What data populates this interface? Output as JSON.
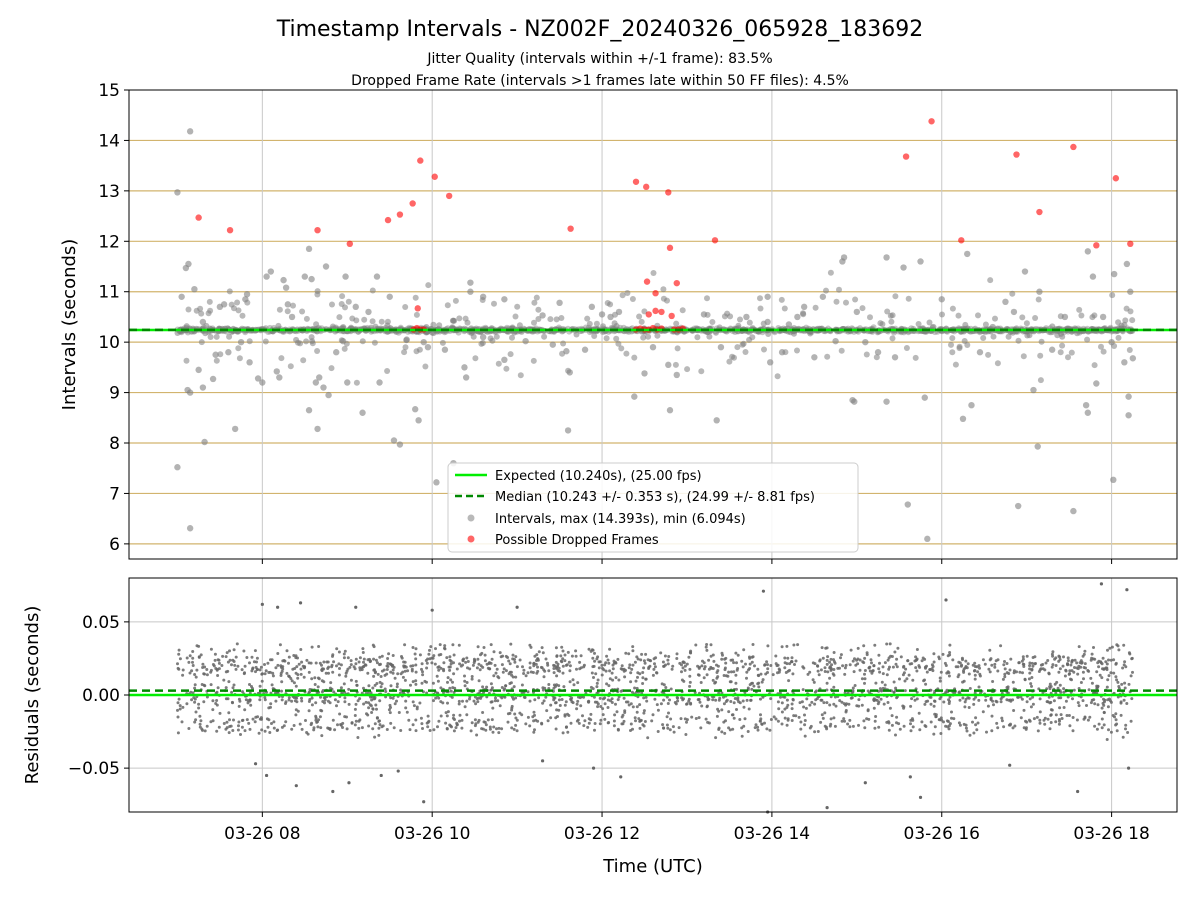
{
  "title": "Timestamp Intervals - NZ002F_20240326_065928_183692",
  "subtitle_1": "Jitter Quality (intervals within +/-1 frame): 83.5%",
  "subtitle_2": "Dropped Frame Rate (intervals >1 frames late within 50 FF files): 4.5%",
  "colors": {
    "expected": "#00ee00",
    "median": "#008800",
    "intervals": "#808080",
    "dropped": "#ff0000",
    "hgrid_top": "#d2b46e",
    "grid": "#c8c8c8",
    "residuals": "#666666"
  },
  "chart_data": [
    {
      "type": "scatter",
      "ylabel": "Intervals (seconds)",
      "ylim": [
        5.7,
        15
      ],
      "yticks": [
        6,
        7,
        8,
        9,
        10,
        11,
        12,
        13,
        14,
        15
      ],
      "xlim": [
        6.43,
        18.77
      ],
      "x_unit": "hour of 2024-03-26 UTC",
      "expected": 10.24,
      "median": 10.243,
      "legend": {
        "placement": "lower center",
        "entries": [
          "Expected (10.240s), (25.00 fps)",
          "Median (10.243 +/- 0.353 s), (24.99 +/- 8.81 fps)",
          "Intervals, max (14.393s), min (6.094s)",
          "Possible Dropped Frames"
        ]
      },
      "grid": "on",
      "series": [
        {
          "name": "Intervals, max (14.393s), min (6.094s)",
          "points": [
            [
              7.0,
              12.97
            ],
            [
              7.15,
              14.18
            ],
            [
              7.0,
              7.52
            ],
            [
              7.15,
              6.31
            ],
            [
              7.1,
              11.47
            ],
            [
              7.13,
              11.55
            ],
            [
              7.2,
              11.05
            ],
            [
              7.05,
              10.9
            ],
            [
              7.12,
              9.05
            ],
            [
              7.15,
              9.0
            ],
            [
              7.25,
              9.45
            ],
            [
              7.3,
              9.1
            ],
            [
              7.32,
              8.02
            ],
            [
              7.42,
              9.27
            ],
            [
              7.45,
              9.75
            ],
            [
              7.5,
              10.7
            ],
            [
              7.55,
              10.75
            ],
            [
              7.68,
              8.28
            ],
            [
              7.8,
              10.85
            ],
            [
              7.82,
              10.95
            ],
            [
              7.85,
              9.6
            ],
            [
              7.95,
              9.28
            ],
            [
              8.05,
              11.3
            ],
            [
              8.1,
              11.4
            ],
            [
              8.0,
              9.2
            ],
            [
              8.17,
              9.42
            ],
            [
              8.28,
              11.08
            ],
            [
              8.25,
              11.23
            ],
            [
              8.2,
              9.3
            ],
            [
              8.3,
              10.75
            ],
            [
              8.5,
              11.3
            ],
            [
              8.55,
              11.85
            ],
            [
              8.58,
              11.25
            ],
            [
              8.63,
              9.2
            ],
            [
              8.55,
              8.65
            ],
            [
              8.65,
              8.28
            ],
            [
              8.67,
              9.3
            ],
            [
              8.72,
              9.1
            ],
            [
              8.75,
              11.5
            ],
            [
              8.78,
              8.95
            ],
            [
              8.87,
              9.8
            ],
            [
              8.98,
              11.3
            ],
            [
              9.0,
              9.2
            ],
            [
              9.1,
              10.7
            ],
            [
              9.18,
              8.6
            ],
            [
              9.35,
              11.3
            ],
            [
              9.38,
              9.2
            ],
            [
              9.5,
              10.9
            ],
            [
              9.55,
              8.05
            ],
            [
              9.62,
              7.97
            ],
            [
              9.8,
              8.67
            ],
            [
              9.84,
              8.45
            ],
            [
              9.9,
              10.0
            ],
            [
              9.95,
              9.9
            ],
            [
              10.05,
              7.22
            ],
            [
              10.25,
              7.6
            ],
            [
              10.38,
              9.5
            ],
            [
              10.4,
              9.3
            ],
            [
              10.45,
              11.0
            ],
            [
              10.45,
              11.18
            ],
            [
              10.6,
              10.9
            ],
            [
              10.85,
              10.85
            ],
            [
              10.85,
              9.65
            ],
            [
              11.3,
              10.53
            ],
            [
              11.42,
              9.95
            ],
            [
              11.5,
              10.78
            ],
            [
              11.58,
              9.82
            ],
            [
              11.62,
              9.4
            ],
            [
              11.6,
              8.25
            ],
            [
              11.88,
              10.7
            ],
            [
              12.0,
              10.55
            ],
            [
              12.1,
              10.5
            ],
            [
              12.38,
              8.92
            ],
            [
              12.5,
              9.38
            ],
            [
              12.78,
              9.55
            ],
            [
              12.8,
              8.65
            ],
            [
              12.88,
              9.35
            ],
            [
              13.2,
              10.55
            ],
            [
              13.35,
              8.45
            ],
            [
              13.4,
              9.9
            ],
            [
              13.95,
              10.4
            ],
            [
              13.98,
              9.6
            ],
            [
              13.95,
              10.9
            ],
            [
              14.12,
              9.8
            ],
            [
              14.3,
              10.5
            ],
            [
              14.38,
              10.7
            ],
            [
              14.5,
              9.7
            ],
            [
              14.6,
              10.9
            ],
            [
              14.75,
              10.02
            ],
            [
              14.83,
              11.6
            ],
            [
              14.85,
              11.68
            ],
            [
              14.95,
              8.85
            ],
            [
              14.97,
              8.82
            ],
            [
              15.1,
              10.0
            ],
            [
              15.25,
              9.8
            ],
            [
              15.35,
              11.68
            ],
            [
              15.35,
              8.82
            ],
            [
              15.55,
              11.48
            ],
            [
              15.6,
              6.78
            ],
            [
              15.75,
              11.6
            ],
            [
              15.8,
              8.9
            ],
            [
              15.83,
              6.1
            ],
            [
              16.0,
              10.85
            ],
            [
              16.25,
              8.48
            ],
            [
              16.3,
              11.75
            ],
            [
              16.35,
              8.75
            ],
            [
              16.6,
              10.3
            ],
            [
              16.75,
              10.8
            ],
            [
              16.98,
              11.4
            ],
            [
              17.08,
              9.05
            ],
            [
              17.13,
              7.93
            ],
            [
              17.15,
              11.0
            ],
            [
              16.9,
              6.75
            ],
            [
              17.45,
              10.5
            ],
            [
              17.55,
              6.65
            ],
            [
              17.7,
              8.75
            ],
            [
              17.72,
              8.6
            ],
            [
              17.72,
              11.8
            ],
            [
              17.78,
              11.3
            ],
            [
              17.82,
              9.18
            ],
            [
              18.0,
              10.0
            ],
            [
              18.02,
              7.27
            ],
            [
              18.03,
              11.35
            ],
            [
              18.18,
              11.55
            ],
            [
              18.22,
              11.0
            ],
            [
              18.2,
              8.92
            ],
            [
              18.2,
              8.55
            ],
            [
              18.25,
              9.68
            ],
            [
              7.3,
              10.4
            ],
            [
              7.6,
              9.8
            ],
            [
              7.75,
              10.0
            ],
            [
              8.35,
              10.5
            ],
            [
              8.95,
              10.02
            ],
            [
              9.25,
              10.6
            ],
            [
              9.7,
              10.05
            ],
            [
              10.15,
              9.85
            ],
            [
              10.6,
              10.1
            ],
            [
              11.1,
              10.02
            ],
            [
              11.8,
              9.85
            ],
            [
              12.2,
              10.6
            ],
            [
              12.6,
              9.9
            ],
            [
              13.7,
              10.5
            ],
            [
              14.2,
              10.35
            ],
            [
              15.0,
              10.6
            ],
            [
              15.45,
              9.7
            ],
            [
              15.9,
              10.3
            ],
            [
              16.45,
              9.8
            ],
            [
              16.85,
              10.6
            ],
            [
              17.3,
              9.85
            ],
            [
              17.9,
              10.5
            ],
            [
              18.15,
              9.6
            ]
          ]
        },
        {
          "name": "Possible Dropped Frames",
          "points": [
            [
              7.25,
              12.47
            ],
            [
              7.62,
              12.22
            ],
            [
              8.65,
              12.22
            ],
            [
              9.03,
              11.95
            ],
            [
              9.48,
              12.42
            ],
            [
              9.62,
              12.53
            ],
            [
              9.77,
              12.75
            ],
            [
              9.86,
              13.6
            ],
            [
              10.03,
              13.28
            ],
            [
              10.2,
              12.9
            ],
            [
              9.78,
              10.25
            ],
            [
              9.82,
              10.28
            ],
            [
              9.86,
              10.25
            ],
            [
              9.9,
              10.25
            ],
            [
              9.83,
              10.67
            ],
            [
              11.63,
              12.25
            ],
            [
              12.4,
              13.18
            ],
            [
              12.52,
              13.08
            ],
            [
              12.78,
              12.97
            ],
            [
              12.8,
              11.87
            ],
            [
              12.53,
              11.2
            ],
            [
              12.88,
              11.17
            ],
            [
              12.63,
              10.97
            ],
            [
              12.55,
              10.55
            ],
            [
              12.63,
              10.62
            ],
            [
              12.7,
              10.6
            ],
            [
              12.82,
              10.52
            ],
            [
              12.4,
              10.25
            ],
            [
              12.45,
              10.27
            ],
            [
              12.5,
              10.25
            ],
            [
              12.55,
              10.25
            ],
            [
              12.6,
              10.28
            ],
            [
              12.65,
              10.25
            ],
            [
              12.7,
              10.27
            ],
            [
              12.85,
              10.25
            ],
            [
              12.9,
              10.25
            ],
            [
              12.95,
              10.27
            ],
            [
              13.33,
              12.02
            ],
            [
              15.58,
              13.68
            ],
            [
              15.88,
              14.38
            ],
            [
              16.23,
              12.02
            ],
            [
              16.88,
              13.72
            ],
            [
              17.15,
              12.58
            ],
            [
              17.55,
              13.87
            ],
            [
              17.82,
              11.92
            ],
            [
              18.05,
              13.25
            ],
            [
              18.22,
              11.95
            ]
          ]
        }
      ]
    },
    {
      "type": "scatter",
      "xlabel": "Time (UTC)",
      "ylabel": "Residuals (seconds)",
      "ylim": [
        -0.08,
        0.08
      ],
      "yticks": [
        -0.05,
        0.0,
        0.05
      ],
      "ytick_labels": [
        "−0.05",
        "0.00",
        "0.05"
      ],
      "xlim": [
        6.43,
        18.77
      ],
      "xticks": [
        8,
        10,
        12,
        14,
        16,
        18
      ],
      "xtick_labels": [
        "03-26 08",
        "03-26 10",
        "03-26 12",
        "03-26 14",
        "03-26 16",
        "03-26 18"
      ],
      "x_range_points": [
        7.0,
        18.25
      ],
      "band_levels": [
        0.02,
        0.0,
        -0.02
      ],
      "band_spread": 0.004,
      "scatter_spread": 0.03,
      "zero_line": 0.0,
      "median_line": 0.003,
      "grid": "on",
      "outliers": [
        [
          8.0,
          0.062
        ],
        [
          8.18,
          0.06
        ],
        [
          8.45,
          0.063
        ],
        [
          9.1,
          0.06
        ],
        [
          10.0,
          0.058
        ],
        [
          11.0,
          0.06
        ],
        [
          13.9,
          0.071
        ],
        [
          16.05,
          0.065
        ],
        [
          17.88,
          0.076
        ],
        [
          18.18,
          0.072
        ],
        [
          7.92,
          -0.047
        ],
        [
          8.05,
          -0.055
        ],
        [
          8.4,
          -0.062
        ],
        [
          8.83,
          -0.066
        ],
        [
          9.02,
          -0.06
        ],
        [
          9.4,
          -0.055
        ],
        [
          9.9,
          -0.073
        ],
        [
          11.9,
          -0.05
        ],
        [
          12.22,
          -0.056
        ],
        [
          13.95,
          -0.08
        ],
        [
          14.65,
          -0.077
        ],
        [
          15.1,
          -0.06
        ],
        [
          15.63,
          -0.056
        ],
        [
          15.75,
          -0.07
        ],
        [
          17.6,
          -0.066
        ],
        [
          18.2,
          -0.05
        ],
        [
          9.6,
          -0.052
        ],
        [
          11.3,
          -0.045
        ],
        [
          16.8,
          -0.048
        ]
      ]
    }
  ]
}
